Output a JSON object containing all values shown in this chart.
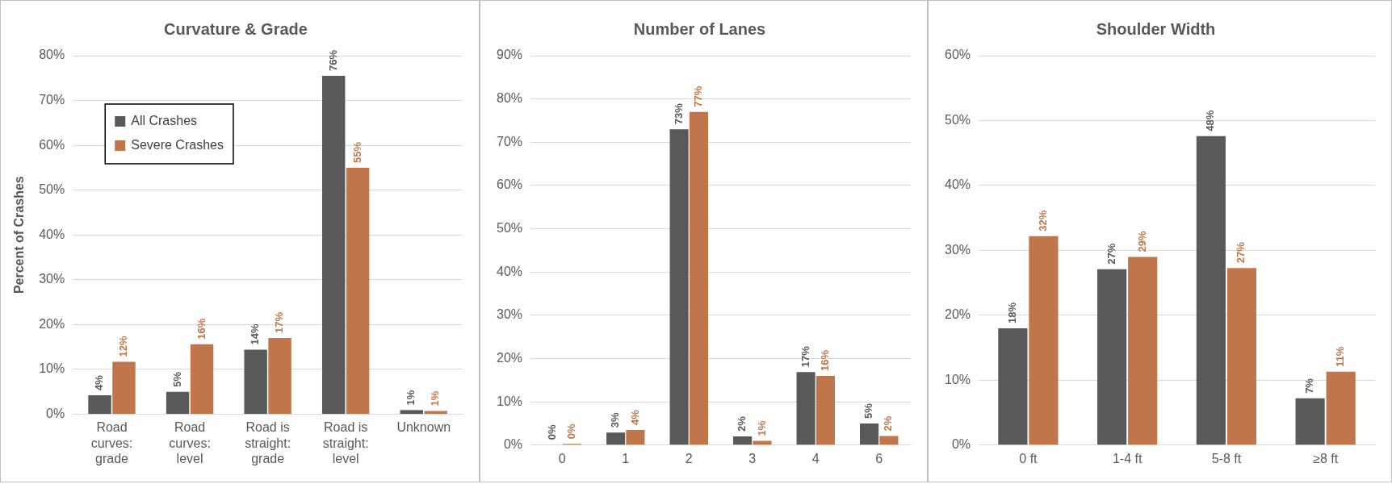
{
  "chart_data": [
    {
      "type": "bar",
      "title": "Curvature & Grade",
      "ylabel": "Percent of Crashes",
      "categories": [
        "Road curves: grade",
        "Road curves: level",
        "Road is straight: grade",
        "Road is straight: level",
        "Unknown"
      ],
      "series": [
        {
          "name": "All Crashes",
          "color": "#595959",
          "values": [
            4.2,
            5,
            14.4,
            75.5,
            0.9
          ],
          "value_labels": [
            "4%",
            "5%",
            "14%",
            "76%",
            "1%"
          ]
        },
        {
          "name": "Severe Crashes",
          "color": "#c0764a",
          "values": [
            11.7,
            15.6,
            17,
            55,
            0.7
          ],
          "value_labels": [
            "12%",
            "16%",
            "17%",
            "55%",
            "1%"
          ]
        }
      ],
      "ylim": [
        0,
        80
      ],
      "yticks": [
        {
          "value": 0,
          "label": "0%"
        },
        {
          "value": 10,
          "label": "10%"
        },
        {
          "value": 20,
          "label": "20%"
        },
        {
          "value": 30,
          "label": "30%"
        },
        {
          "value": 40,
          "label": "40%"
        },
        {
          "value": 50,
          "label": "50%"
        },
        {
          "value": 60,
          "label": "60%"
        },
        {
          "value": 70,
          "label": "70%"
        },
        {
          "value": 80,
          "label": "80%"
        }
      ],
      "grid": "y",
      "legend": "top left"
    },
    {
      "type": "bar",
      "title": "Number of Lanes",
      "categories": [
        "0",
        "1",
        "2",
        "3",
        "4",
        "6"
      ],
      "series": [
        {
          "color": "#595959",
          "values": [
            0.1,
            2.9,
            73,
            2,
            16.9,
            5
          ],
          "value_labels": [
            "0%",
            "3%",
            "73%",
            "2%",
            "17%",
            "5%"
          ]
        },
        {
          "color": "#c0764a",
          "values": [
            0.3,
            3.5,
            77,
            1,
            16,
            2.1
          ],
          "value_labels": [
            "0%",
            "4%",
            "77%",
            "1%",
            "16%",
            "2%"
          ]
        }
      ],
      "ylim": [
        0,
        90
      ],
      "yticks": [
        {
          "value": 0,
          "label": "0%"
        },
        {
          "value": 10,
          "label": "10%"
        },
        {
          "value": 20,
          "label": "20%"
        },
        {
          "value": 30,
          "label": "30%"
        },
        {
          "value": 40,
          "label": "40%"
        },
        {
          "value": 50,
          "label": "50%"
        },
        {
          "value": 60,
          "label": "60%"
        },
        {
          "value": 70,
          "label": "70%"
        },
        {
          "value": 80,
          "label": "80%"
        },
        {
          "value": 90,
          "label": "90%"
        }
      ],
      "grid": "y"
    },
    {
      "type": "bar",
      "title": "Shoulder Width",
      "categories": [
        "0 ft",
        "1-4 ft",
        "5-8 ft",
        "≥8 ft"
      ],
      "series": [
        {
          "color": "#595959",
          "values": [
            18,
            27.1,
            47.6,
            7.2
          ],
          "value_labels": [
            "18%",
            "27%",
            "48%",
            "7%"
          ]
        },
        {
          "color": "#c0764a",
          "values": [
            32.2,
            29,
            27.3,
            11.3
          ],
          "value_labels": [
            "32%",
            "29%",
            "27%",
            "11%"
          ]
        }
      ],
      "ylim": [
        0,
        60
      ],
      "yticks": [
        {
          "value": 0,
          "label": "0%"
        },
        {
          "value": 10,
          "label": "10%"
        },
        {
          "value": 20,
          "label": "20%"
        },
        {
          "value": 30,
          "label": "30%"
        },
        {
          "value": 40,
          "label": "40%"
        },
        {
          "value": 50,
          "label": "50%"
        },
        {
          "value": 60,
          "label": "60%"
        }
      ],
      "grid": "y"
    }
  ]
}
